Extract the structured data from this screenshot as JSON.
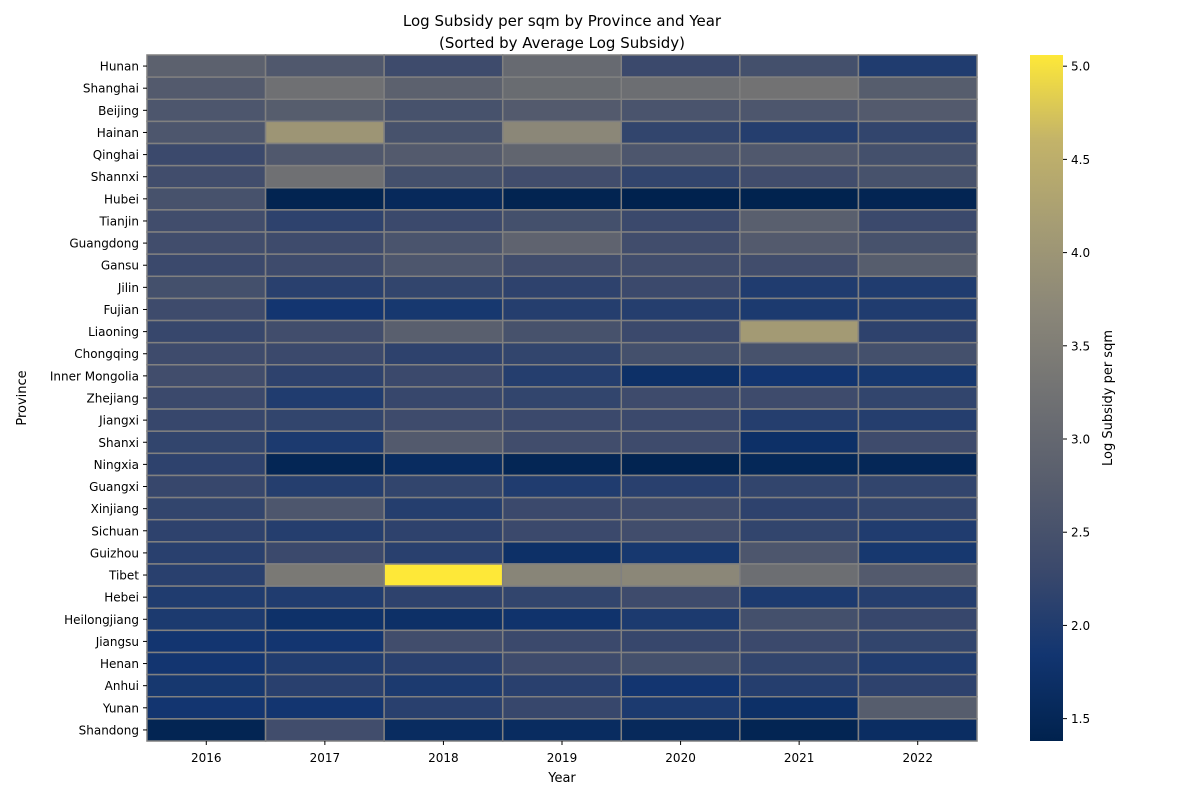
{
  "chart_data": {
    "type": "heatmap",
    "title": "Log Subsidy per sqm by Province and Year",
    "subtitle": "(Sorted by Average Log Subsidy)",
    "xlabel": "Year",
    "ylabel": "Province",
    "colorbar_label": "Log Subsidy per sqm",
    "colormap": "cividis",
    "color_range": [
      1.38,
      5.06
    ],
    "colorbar_ticks": [
      "1.5",
      "2.0",
      "2.5",
      "3.0",
      "3.5",
      "4.0",
      "4.5",
      "5.0"
    ],
    "colorbar_tick_values": [
      1.5,
      2.0,
      2.5,
      3.0,
      3.5,
      4.0,
      4.5,
      5.0
    ],
    "cell_border_color": "#808080",
    "years": [
      "2016",
      "2017",
      "2018",
      "2019",
      "2020",
      "2021",
      "2022"
    ],
    "provinces": [
      "Hunan",
      "Shanghai",
      "Beijing",
      "Hainan",
      "Qinghai",
      "Shannxi",
      "Hubei",
      "Tianjin",
      "Guangdong",
      "Gansu",
      "Jilin",
      "Fujian",
      "Liaoning",
      "Chongqing",
      "Inner Mongolia",
      "Zhejiang",
      "Jiangxi",
      "Shanxi",
      "Ningxia",
      "Guangxi",
      "Xinjiang",
      "Sichuan",
      "Guizhou",
      "Tibet",
      "Hebei",
      "Heilongjiang",
      "Jiangsu",
      "Henan",
      "Anhui",
      "Yunan",
      "Shandong"
    ],
    "values": [
      [
        2.85,
        2.65,
        2.35,
        3.05,
        2.3,
        2.45,
        2.0
      ],
      [
        2.7,
        3.2,
        2.85,
        3.1,
        3.15,
        3.25,
        2.75
      ],
      [
        2.6,
        2.75,
        2.5,
        2.7,
        2.55,
        2.6,
        2.7
      ],
      [
        2.6,
        4.0,
        2.5,
        3.7,
        2.2,
        2.05,
        2.2
      ],
      [
        2.3,
        2.65,
        2.7,
        2.95,
        2.6,
        2.65,
        2.45
      ],
      [
        2.4,
        3.2,
        2.45,
        2.4,
        2.2,
        2.4,
        2.5
      ],
      [
        2.5,
        1.42,
        1.55,
        1.42,
        1.38,
        1.4,
        1.45
      ],
      [
        2.4,
        2.15,
        2.3,
        2.45,
        2.3,
        2.8,
        2.3
      ],
      [
        2.4,
        2.35,
        2.55,
        2.9,
        2.4,
        2.7,
        2.5
      ],
      [
        2.3,
        2.35,
        2.6,
        2.4,
        2.4,
        2.4,
        2.75
      ],
      [
        2.45,
        2.1,
        2.2,
        2.15,
        2.3,
        2.0,
        2.0
      ],
      [
        2.35,
        1.85,
        1.9,
        2.05,
        2.05,
        1.95,
        2.0
      ],
      [
        2.25,
        2.4,
        2.8,
        2.5,
        2.3,
        4.1,
        2.15
      ],
      [
        2.35,
        2.3,
        2.15,
        2.2,
        2.45,
        2.5,
        2.45
      ],
      [
        2.4,
        2.15,
        2.3,
        2.05,
        1.72,
        1.85,
        1.9
      ],
      [
        2.3,
        2.0,
        2.25,
        2.2,
        2.35,
        2.35,
        2.2
      ],
      [
        2.25,
        2.2,
        2.35,
        2.3,
        2.3,
        2.05,
        2.05
      ],
      [
        2.2,
        1.95,
        2.7,
        2.4,
        2.35,
        1.72,
        2.35
      ],
      [
        2.15,
        1.48,
        1.62,
        1.48,
        1.42,
        1.52,
        1.5
      ],
      [
        2.25,
        2.05,
        2.2,
        2.0,
        2.1,
        2.2,
        2.2
      ],
      [
        2.2,
        2.6,
        2.05,
        2.3,
        2.35,
        2.15,
        2.2
      ],
      [
        2.15,
        2.05,
        2.15,
        2.3,
        2.4,
        2.2,
        2.0
      ],
      [
        2.1,
        2.3,
        2.1,
        1.72,
        1.9,
        2.6,
        1.9
      ],
      [
        2.1,
        3.4,
        5.06,
        3.65,
        3.7,
        3.15,
        2.7
      ],
      [
        2.0,
        2.0,
        2.15,
        2.2,
        2.35,
        1.95,
        2.05
      ],
      [
        1.95,
        1.75,
        1.72,
        1.78,
        1.95,
        2.45,
        2.25
      ],
      [
        1.85,
        1.85,
        2.4,
        2.3,
        2.25,
        2.3,
        2.2
      ],
      [
        1.85,
        2.0,
        2.1,
        2.35,
        2.45,
        2.2,
        2.0
      ],
      [
        1.9,
        2.1,
        1.95,
        2.1,
        1.85,
        2.05,
        2.15
      ],
      [
        1.85,
        1.85,
        2.1,
        2.25,
        1.95,
        1.72,
        2.75
      ],
      [
        1.45,
        2.4,
        1.62,
        1.62,
        1.55,
        1.45,
        1.65
      ]
    ]
  }
}
